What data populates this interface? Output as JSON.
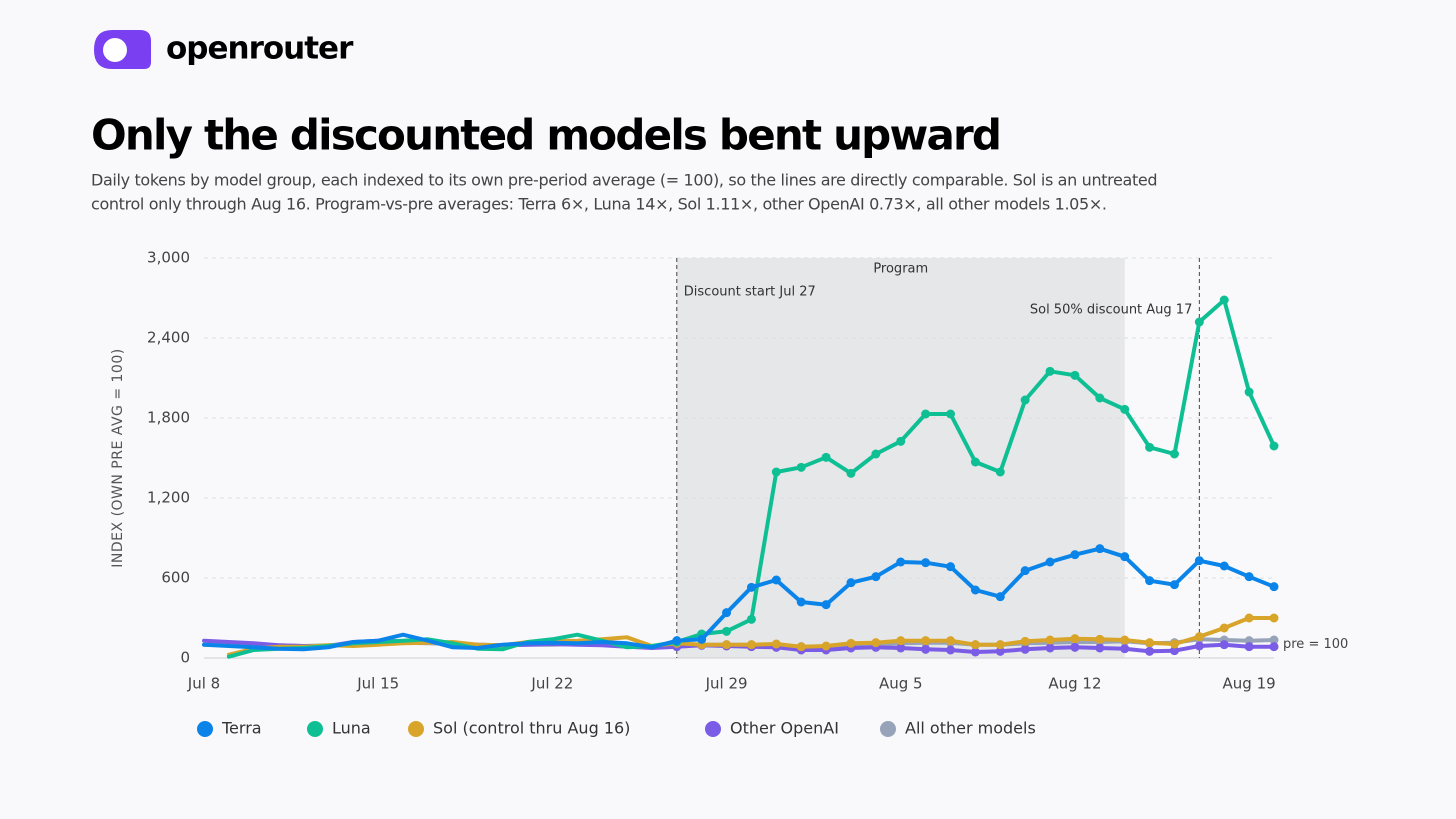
{
  "brand": "openrouter",
  "header": {
    "title": "Only the discounted models bent upward",
    "subtitle": [
      "Daily tokens by model group, each indexed to its own pre-period average (= 100), so the lines are directly comparable. Sol is an untreated",
      "control only through Aug 16. Program-vs-pre averages: Terra 6×, Luna 14×, Sol 1.11×, other OpenAI 0.73×, all other models 1.05×."
    ]
  },
  "chart_data": {
    "type": "line",
    "ylabel": "INDEX (OWN PRE AVG = 100)",
    "categories": [
      "Jul 8",
      null,
      null,
      null,
      null,
      null,
      null,
      "Jul 15",
      null,
      null,
      null,
      null,
      null,
      null,
      "Jul 22",
      null,
      null,
      null,
      null,
      null,
      null,
      "Jul 29",
      null,
      null,
      null,
      null,
      null,
      null,
      "Aug 5",
      null,
      null,
      null,
      null,
      null,
      null,
      "Aug 12",
      null,
      null,
      null,
      null,
      null,
      null,
      "Aug 19",
      null
    ],
    "ylim": [
      0,
      3000
    ],
    "yticks": [
      0,
      600,
      {
        "value": 1200,
        "label": "1,200"
      },
      {
        "value": 1800,
        "label": "1,800"
      },
      {
        "value": 2400,
        "label": "2,400"
      },
      {
        "value": 3000,
        "label": "3,000"
      }
    ],
    "grid": true,
    "marker_start_index": 19,
    "shaded_span": {
      "from_index": 19,
      "to_index": 37,
      "label": "Program"
    },
    "vlines": [
      {
        "index": 19,
        "label": "Discount start Jul 27"
      },
      {
        "index": 40,
        "label": "Sol 50% discount Aug 17"
      }
    ],
    "reference": {
      "value": 100,
      "label": "pre = 100"
    },
    "series": [
      {
        "name": "Terra",
        "color": "#0a84e8",
        "values": [
          100,
          90,
          80,
          70,
          65,
          80,
          120,
          130,
          175,
          130,
          80,
          75,
          100,
          110,
          115,
          110,
          120,
          110,
          80,
          130,
          140,
          340,
          530,
          585,
          420,
          400,
          565,
          610,
          720,
          715,
          685,
          510,
          460,
          655,
          720,
          775,
          820,
          760,
          580,
          550,
          730,
          690,
          610,
          535
        ]
      },
      {
        "name": "Luna",
        "color": "#0fbf94",
        "values": [
          null,
          10,
          60,
          70,
          75,
          90,
          110,
          120,
          130,
          140,
          110,
          70,
          65,
          120,
          140,
          175,
          130,
          80,
          90,
          120,
          180,
          200,
          290,
          1395,
          1430,
          1505,
          1385,
          1530,
          1625,
          1830,
          1830,
          1470,
          1395,
          1935,
          2150,
          2120,
          1950,
          1865,
          1580,
          1530,
          2520,
          2685,
          1995,
          1590
        ]
      },
      {
        "name": "Sol (control thru Aug 16)",
        "color": "#d8a52a",
        "values": [
          null,
          25,
          70,
          85,
          85,
          95,
          90,
          100,
          110,
          115,
          120,
          100,
          95,
          120,
          125,
          130,
          140,
          155,
          90,
          110,
          100,
          100,
          100,
          105,
          85,
          90,
          110,
          115,
          130,
          130,
          130,
          100,
          100,
          125,
          135,
          145,
          140,
          135,
          115,
          105,
          160,
          225,
          300,
          300
        ]
      },
      {
        "name": "Other OpenAI",
        "color": "#7b5ce6",
        "values": [
          130,
          120,
          110,
          95,
          90,
          90,
          120,
          130,
          125,
          120,
          110,
          100,
          95,
          100,
          105,
          100,
          95,
          85,
          75,
          85,
          95,
          90,
          85,
          80,
          60,
          60,
          75,
          80,
          75,
          65,
          60,
          45,
          50,
          65,
          75,
          80,
          75,
          70,
          50,
          55,
          90,
          100,
          85,
          85
        ]
      },
      {
        "name": "All other models",
        "color": "#97a3b8",
        "values": [
          100,
          100,
          95,
          95,
          90,
          95,
          105,
          110,
          115,
          110,
          105,
          100,
          95,
          100,
          100,
          105,
          100,
          95,
          90,
          95,
          100,
          100,
          100,
          95,
          85,
          85,
          95,
          100,
          110,
          115,
          115,
          100,
          100,
          110,
          115,
          120,
          120,
          125,
          110,
          115,
          140,
          135,
          130,
          135
        ]
      }
    ]
  }
}
